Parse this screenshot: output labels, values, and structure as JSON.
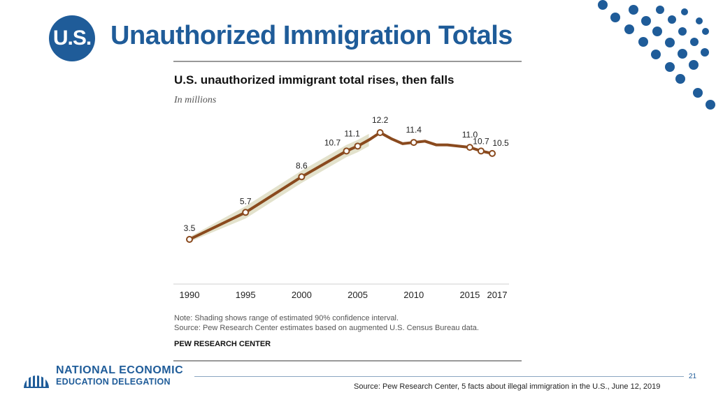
{
  "slide": {
    "badge": "U.S.",
    "title": "Unauthorized Immigration Totals",
    "page_number": "21",
    "source": "Source: Pew Research Center, 5 facts about illegal immigration in the U.S., June 12, 2019"
  },
  "logo": {
    "line1": "NATIONAL ECONOMIC",
    "line2": "EDUCATION DELEGATION"
  },
  "colors": {
    "brand_blue": "#1f5c99",
    "line": "#8a4a1e",
    "shading": "#e3e2cc"
  },
  "chart_data": {
    "type": "line",
    "title": "U.S. unauthorized immigrant total rises, then falls",
    "subtitle": "In millions",
    "xlabel": "",
    "ylabel": "",
    "x_ticks": [
      1990,
      1995,
      2000,
      2005,
      2010,
      2015,
      2017
    ],
    "ylim": [
      0,
      14
    ],
    "grid": false,
    "series": [
      {
        "name": "Unauthorized immigrant total",
        "x": [
          1990,
          1995,
          2000,
          2004,
          2005,
          2006,
          2007,
          2008,
          2009,
          2010,
          2011,
          2012,
          2013,
          2014,
          2015,
          2016,
          2017
        ],
        "values": [
          3.5,
          5.7,
          8.6,
          10.7,
          11.1,
          11.6,
          12.2,
          11.7,
          11.3,
          11.4,
          11.5,
          11.2,
          11.2,
          11.1,
          11.0,
          10.7,
          10.5
        ]
      }
    ],
    "labeled_points": [
      {
        "x": 1990,
        "label": "3.5"
      },
      {
        "x": 1995,
        "label": "5.7"
      },
      {
        "x": 2000,
        "label": "8.6"
      },
      {
        "x": 2004,
        "label": "10.7"
      },
      {
        "x": 2005,
        "label": "11.1"
      },
      {
        "x": 2007,
        "label": "12.2"
      },
      {
        "x": 2010,
        "label": "11.4"
      },
      {
        "x": 2015,
        "label": "11.0"
      },
      {
        "x": 2016,
        "label": "10.7"
      },
      {
        "x": 2017,
        "label": "10.5"
      }
    ],
    "confidence_band": {
      "x": [
        1990,
        1995,
        2000,
        2004,
        2005,
        2006
      ],
      "low": [
        3.3,
        5.2,
        8.1,
        10.2,
        10.6,
        11.1
      ],
      "high": [
        3.7,
        6.2,
        9.1,
        11.2,
        11.6,
        12.1
      ]
    },
    "note": "Note: Shading shows range of estimated 90% confidence interval.",
    "source": "Source: Pew Research Center estimates based on augmented U.S. Census Bureau data.",
    "credit": "PEW RESEARCH CENTER"
  }
}
